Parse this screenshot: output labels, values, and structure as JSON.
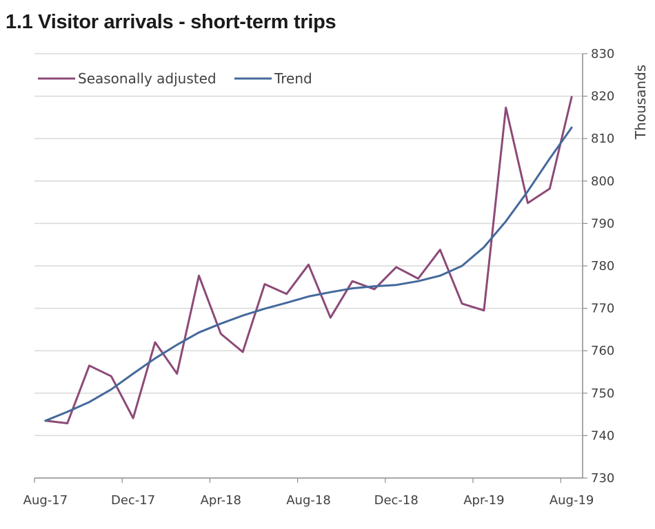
{
  "chart_data": {
    "type": "line",
    "title": "1.1 Visitor arrivals - short-term trips",
    "ylabel": "Thousands",
    "xlabel": "",
    "ylim": [
      730,
      830
    ],
    "yticks": [
      730,
      740,
      750,
      760,
      770,
      780,
      790,
      800,
      810,
      820,
      830
    ],
    "grid": true,
    "legend_position": "top-left",
    "x": [
      "Aug-17",
      "Sep-17",
      "Oct-17",
      "Nov-17",
      "Dec-17",
      "Jan-18",
      "Feb-18",
      "Mar-18",
      "Apr-18",
      "May-18",
      "Jun-18",
      "Jul-18",
      "Aug-18",
      "Sep-18",
      "Oct-18",
      "Nov-18",
      "Dec-18",
      "Jan-19",
      "Feb-19",
      "Mar-19",
      "Apr-19",
      "May-19",
      "Jun-19",
      "Jul-19",
      "Aug-19"
    ],
    "xtick_labels": [
      "Aug-17",
      "Dec-17",
      "Apr-18",
      "Aug-18",
      "Dec-18",
      "Apr-19",
      "Aug-19"
    ],
    "series": [
      {
        "name": "Seasonally adjusted",
        "color": "#8c4a78",
        "values": [
          743.5,
          742.9,
          756.5,
          754.0,
          744.1,
          762.0,
          754.6,
          777.7,
          764.0,
          759.7,
          775.7,
          773.4,
          780.3,
          767.8,
          776.4,
          774.5,
          779.7,
          777.0,
          783.8,
          771.1,
          769.5,
          817.3,
          794.8,
          798.2,
          819.8
        ]
      },
      {
        "name": "Trend",
        "color": "#44699b",
        "values": [
          743.5,
          745.6,
          747.9,
          750.9,
          754.6,
          758.2,
          761.4,
          764.3,
          766.4,
          768.3,
          769.9,
          771.3,
          772.8,
          773.8,
          774.7,
          775.2,
          775.5,
          776.4,
          777.7,
          780.0,
          784.4,
          790.5,
          797.6,
          805.3,
          812.6
        ]
      }
    ]
  }
}
